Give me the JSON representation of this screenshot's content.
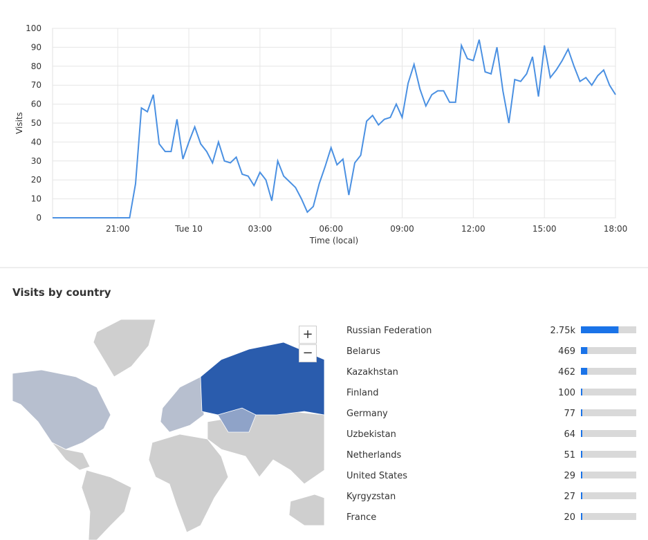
{
  "chart_data": [
    {
      "type": "line",
      "xlabel": "Time (local)",
      "ylabel": "Visits",
      "color": "#4a90e2",
      "grid": true,
      "xlim": [
        18.25,
        42
      ],
      "ylim": [
        0,
        100
      ],
      "xticks": [
        {
          "value": 21,
          "label": "21:00"
        },
        {
          "value": 24,
          "label": "Tue 10"
        },
        {
          "value": 27,
          "label": "03:00"
        },
        {
          "value": 30,
          "label": "06:00"
        },
        {
          "value": 33,
          "label": "09:00"
        },
        {
          "value": 36,
          "label": "12:00"
        },
        {
          "value": 39,
          "label": "15:00"
        },
        {
          "value": 42,
          "label": "18:00"
        }
      ],
      "yticks": [
        0,
        10,
        20,
        30,
        40,
        50,
        60,
        70,
        80,
        90,
        100
      ],
      "x": [
        18.25,
        18.5,
        18.75,
        19,
        19.25,
        19.5,
        19.75,
        20,
        20.25,
        20.5,
        20.75,
        21,
        21.25,
        21.5,
        21.75,
        22,
        22.25,
        22.5,
        22.75,
        23,
        23.25,
        23.5,
        23.75,
        24,
        24.25,
        24.5,
        24.75,
        25,
        25.25,
        25.5,
        25.75,
        26,
        26.25,
        26.5,
        26.75,
        27,
        27.25,
        27.5,
        27.75,
        28,
        28.25,
        28.5,
        28.75,
        29,
        29.25,
        29.5,
        29.75,
        30,
        30.25,
        30.5,
        30.75,
        31,
        31.25,
        31.5,
        31.75,
        32,
        32.25,
        32.5,
        32.75,
        33,
        33.25,
        33.5,
        33.75,
        34,
        34.25,
        34.5,
        34.75,
        35,
        35.25,
        35.5,
        35.75,
        36,
        36.25,
        36.5,
        36.75,
        37,
        37.25,
        37.5,
        37.75,
        38,
        38.25,
        38.5,
        38.75,
        39,
        39.25,
        39.5,
        39.75,
        40,
        40.25,
        40.5,
        40.75,
        41,
        41.25,
        41.5,
        41.75,
        42
      ],
      "values": [
        0,
        0,
        0,
        0,
        0,
        0,
        0,
        0,
        0,
        0,
        0,
        0,
        0,
        0,
        18,
        58,
        56,
        65,
        39,
        35,
        35,
        52,
        31,
        40,
        48,
        39,
        35,
        29,
        40,
        30,
        29,
        32,
        23,
        22,
        17,
        24,
        20,
        9,
        30,
        22,
        19,
        16,
        10,
        3,
        6,
        18,
        27,
        37,
        28,
        31,
        12,
        29,
        33,
        51,
        54,
        49,
        52,
        53,
        60,
        53,
        71,
        81,
        68,
        59,
        65,
        67,
        67,
        61,
        61,
        91,
        84,
        83,
        94,
        77,
        76,
        90,
        67,
        50,
        73,
        72,
        76,
        85,
        64,
        91,
        74,
        78,
        83,
        89,
        80,
        72,
        74,
        70,
        75,
        78,
        70,
        65
      ]
    },
    {
      "type": "hbar",
      "title": "Visits by country",
      "color": "#1a73e8",
      "categories": [
        "Russian Federation",
        "Belarus",
        "Kazakhstan",
        "Finland",
        "Germany",
        "Uzbekistan",
        "Netherlands",
        "United States",
        "Kyrgyzstan",
        "France"
      ],
      "values": [
        2750,
        469,
        462,
        100,
        77,
        64,
        51,
        29,
        27,
        20
      ],
      "value_labels": [
        "2.75k",
        "469",
        "462",
        "100",
        "77",
        "64",
        "51",
        "29",
        "27",
        "20"
      ]
    }
  ],
  "map": {
    "zoom_in": "+",
    "zoom_out": "−"
  }
}
